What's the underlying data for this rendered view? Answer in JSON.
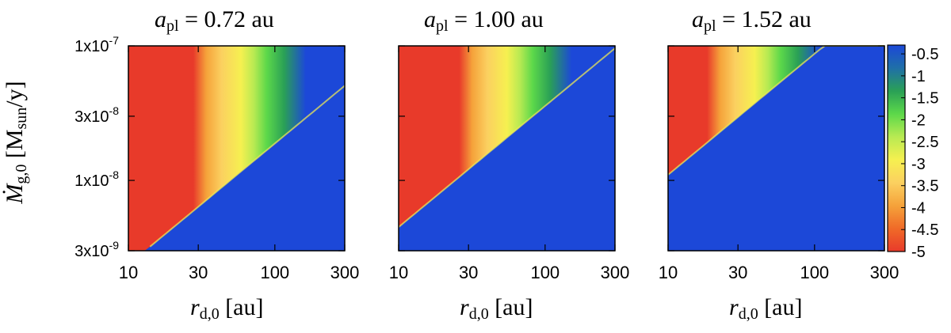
{
  "chart_data": {
    "type": "heatmap",
    "panels": [
      {
        "title_var": "a",
        "title_sub": "pl",
        "title_rest": " = 0.72 au",
        "boundary_rdmin": 13,
        "boundary_mg_at_rdmin": 3e-09,
        "boundary_slope": 0.9
      },
      {
        "title_var": "a",
        "title_sub": "pl",
        "title_rest": " = 1.00 au",
        "boundary_rdmin": 10,
        "boundary_mg_at_rdmin": 4.5e-09,
        "boundary_slope": 0.9
      },
      {
        "title_var": "a",
        "title_sub": "pl",
        "title_rest": " = 1.52 au",
        "boundary_rdmin": 10,
        "boundary_mg_at_rdmin": 1.1e-08,
        "boundary_slope": 0.9
      }
    ],
    "x": {
      "label_var": "r",
      "label_sub": "d,0",
      "label_rest": " [au]",
      "scale": "log",
      "lim": [
        10,
        300
      ],
      "ticks": [
        10,
        30,
        100,
        300
      ],
      "ticklabels": [
        "10",
        "30",
        "100",
        "300"
      ]
    },
    "y": {
      "label_var": "Ṁ",
      "label_sub": "g,0",
      "label_rest1": " [M",
      "label_sub2": "sun",
      "label_rest2": "/y]",
      "scale": "log",
      "lim": [
        3e-09,
        1e-07
      ],
      "ticks": [
        3e-09,
        1e-08,
        3e-08,
        1e-07
      ],
      "ticklabels": [
        {
          "base": "3x10",
          "exp": "-9"
        },
        {
          "base": "1x10",
          "exp": "-8"
        },
        {
          "base": "3x10",
          "exp": "-8"
        },
        {
          "base": "1x10",
          "exp": "-7"
        }
      ]
    },
    "colorbar": {
      "min": -5,
      "max": -0.3,
      "ticks": [
        -0.5,
        -1,
        -1.5,
        -2,
        -2.5,
        -3,
        -3.5,
        -4,
        -4.5,
        -5
      ],
      "ticklabels": [
        "-0.5",
        "-1",
        "-1.5",
        "-2",
        "-2.5",
        "-3",
        "-3.5",
        "-4",
        "-4.5",
        "-5"
      ],
      "colors": [
        "#e83a2a",
        "#f06a28",
        "#f5a23a",
        "#fbd060",
        "#f6f050",
        "#b8ea52",
        "#5cd84a",
        "#2aa056",
        "#1f6fa8",
        "#1c48d8"
      ]
    },
    "regions": {
      "red_value": -5,
      "yellow_value": -2.5,
      "green_value": -1.5,
      "blue_value": -0.5
    }
  }
}
